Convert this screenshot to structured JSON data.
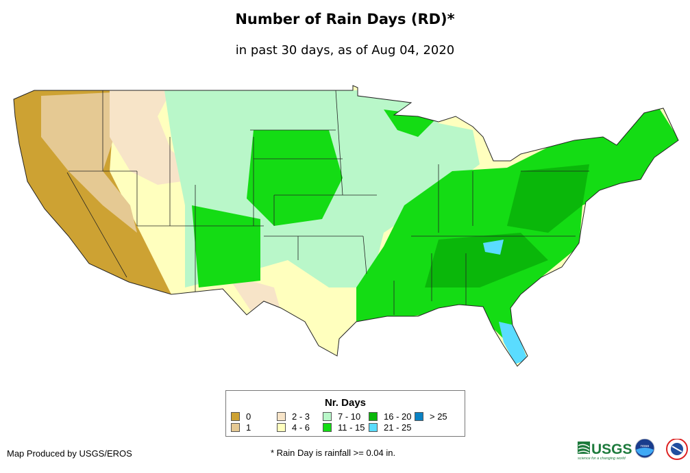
{
  "header": {
    "title": "Number of Rain Days (RD)*",
    "subtitle": "in past 30 days, as of Aug 04, 2020"
  },
  "legend": {
    "title": "Nr. Days",
    "items": [
      {
        "label": "0",
        "color": "#CDA233"
      },
      {
        "label": "1",
        "color": "#E5C993"
      },
      {
        "label": "2 - 3",
        "color": "#F7E4C8"
      },
      {
        "label": "4 - 6",
        "color": "#FFFFBE"
      },
      {
        "label": "7 - 10",
        "color": "#B9F7C9"
      },
      {
        "label": "11 - 15",
        "color": "#14DC14"
      },
      {
        "label": "16 - 20",
        "color": "#0AB70A"
      },
      {
        "label": "21 - 25",
        "color": "#5ADCFF"
      },
      {
        "label": "> 25",
        "color": "#0A82C3"
      }
    ]
  },
  "footer": {
    "credit": "Map Produced by USGS/EROS",
    "footnote": "* Rain Day is rainfall >= 0.04 in.",
    "logos": {
      "usgs": "USGS",
      "usgs_tagline": "science for a changing world",
      "noaa": "noaa",
      "nws": "NATIONAL WEATHER SERVICE"
    }
  }
}
